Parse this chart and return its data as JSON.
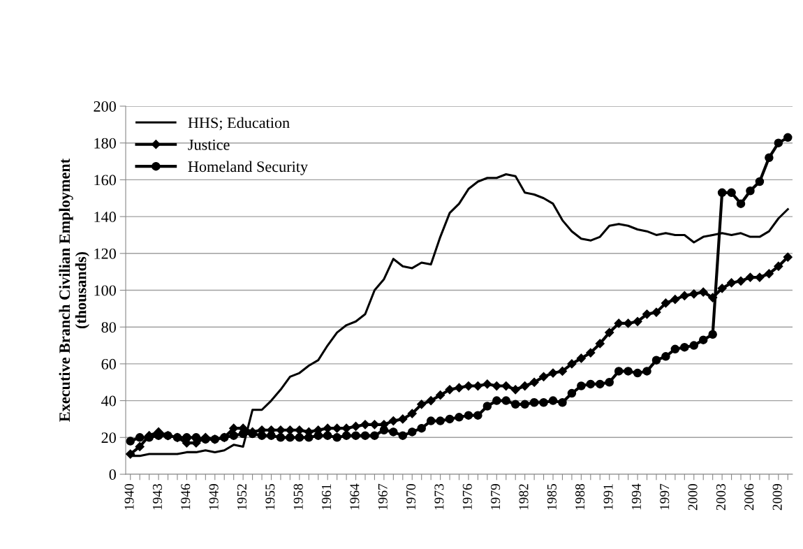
{
  "chart_data": {
    "type": "line",
    "ylabel": "Executive Branch Civilian Employment\n(thousands)",
    "categories": [
      "1940",
      null,
      null,
      "1943",
      null,
      null,
      "1946",
      null,
      null,
      "1949",
      null,
      null,
      "1952",
      null,
      null,
      "1955",
      null,
      null,
      "1958",
      null,
      null,
      "1961",
      null,
      null,
      "1964",
      null,
      null,
      "1967",
      null,
      null,
      "1970",
      null,
      null,
      "1973",
      null,
      null,
      "1976",
      null,
      null,
      "1979",
      null,
      null,
      "1982",
      null,
      null,
      "1985",
      null,
      null,
      "1988",
      null,
      null,
      "1991",
      null,
      null,
      "1994",
      null,
      null,
      "1997",
      null,
      null,
      "2000",
      null,
      null,
      "2003",
      null,
      null,
      "2006",
      null,
      null,
      "2009",
      null
    ],
    "series": [
      {
        "name": "HHS; Education",
        "color": "#000000",
        "marker": "none",
        "values": [
          10,
          10,
          11,
          11,
          11,
          11,
          12,
          12,
          13,
          12,
          13,
          16,
          15,
          35,
          35,
          40,
          46,
          53,
          55,
          59,
          62,
          70,
          77,
          81,
          83,
          87,
          100,
          106,
          117,
          113,
          112,
          115,
          114,
          129,
          142,
          147,
          155,
          159,
          161,
          161,
          163,
          162,
          153,
          152,
          150,
          147,
          138,
          132,
          128,
          127,
          129,
          135,
          136,
          135,
          133,
          132,
          130,
          131,
          130,
          130,
          126,
          129,
          130,
          131,
          130,
          131,
          129,
          129,
          132,
          139,
          144
        ]
      },
      {
        "name": "Justice",
        "color": "#000000",
        "marker": "diamond",
        "values": [
          11,
          15,
          21,
          23,
          21,
          20,
          17,
          17,
          20,
          19,
          20,
          25,
          25,
          23,
          24,
          24,
          24,
          24,
          24,
          23,
          24,
          25,
          25,
          25,
          26,
          27,
          27,
          27,
          29,
          30,
          33,
          38,
          40,
          43,
          46,
          47,
          48,
          48,
          49,
          48,
          48,
          46,
          48,
          50,
          53,
          55,
          56,
          60,
          63,
          66,
          71,
          77,
          82,
          82,
          83,
          87,
          88,
          93,
          95,
          97,
          98,
          99,
          96,
          101,
          104,
          105,
          107,
          107,
          109,
          113,
          118
        ]
      },
      {
        "name": "Homeland Security",
        "color": "#000000",
        "marker": "circle",
        "values": [
          18,
          20,
          20,
          21,
          21,
          20,
          20,
          20,
          19,
          19,
          20,
          21,
          22,
          22,
          21,
          21,
          20,
          20,
          20,
          20,
          21,
          21,
          20,
          21,
          21,
          21,
          21,
          24,
          23,
          21,
          23,
          25,
          29,
          29,
          30,
          31,
          32,
          32,
          37,
          40,
          40,
          38,
          38,
          39,
          39,
          40,
          39,
          44,
          48,
          49,
          49,
          50,
          56,
          56,
          55,
          56,
          62,
          64,
          68,
          69,
          70,
          73,
          76,
          153,
          153,
          147,
          154,
          159,
          172,
          180,
          183
        ]
      }
    ],
    "ylim": [
      0,
      200
    ],
    "yticks": [
      0,
      20,
      40,
      60,
      80,
      100,
      120,
      140,
      160,
      180,
      200
    ],
    "grid": "y",
    "legend": "top left"
  }
}
